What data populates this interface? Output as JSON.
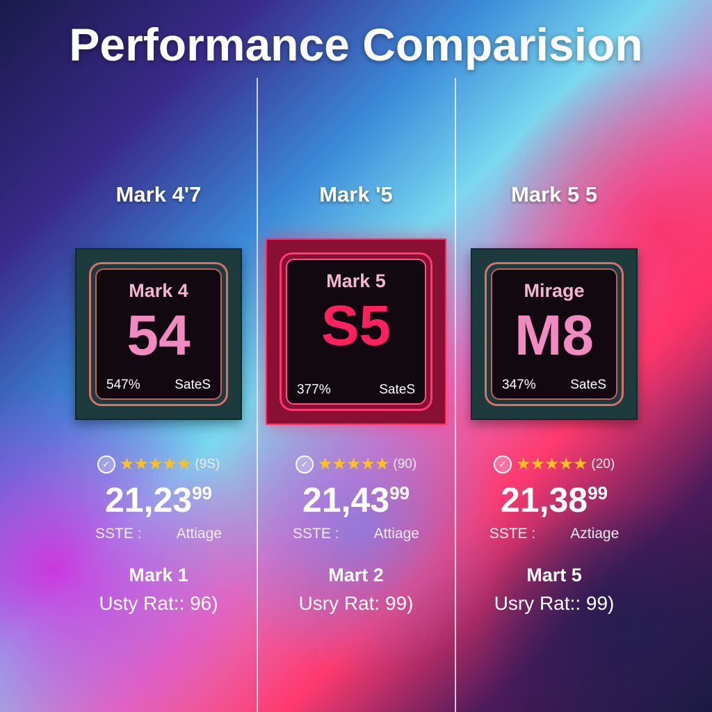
{
  "title": "Performance Comparision",
  "columns": [
    {
      "name": "Mark 4'7",
      "chip_name": "Mark 4",
      "chip_code": "54",
      "percent": "547%",
      "chip_label": "SateS",
      "highlighted": false,
      "stars": 5,
      "rating_count": "(9S)",
      "price_main": "21,23",
      "price_sup": "99",
      "label_left": "SSTE :",
      "label_right": "Attiage",
      "model": "Mark 1",
      "user_rating": "Usty Rat:: 96)"
    },
    {
      "name": "Mark '5",
      "chip_name": "Mark 5",
      "chip_code": "S5",
      "percent": "377%",
      "chip_label": "SateS",
      "highlighted": true,
      "stars": 5,
      "rating_count": "(90)",
      "price_main": "21,43",
      "price_sup": "99",
      "label_left": "SSTE :",
      "label_right": "Attiage",
      "model": "Mart 2",
      "user_rating": "Usry Rat: 99)"
    },
    {
      "name": "Mark 5 5",
      "chip_name": "Mirage",
      "chip_code": "M8",
      "percent": "347%",
      "chip_label": "SateS",
      "highlighted": false,
      "stars": 5,
      "rating_count": "(20)",
      "price_main": "21,38",
      "price_sup": "99",
      "label_left": "SSTE :",
      "label_right": "Aztiage",
      "model": "Mart 5",
      "user_rating": "Usry Rat:: 99)"
    }
  ],
  "icons": {
    "rating_badge": "tag-check-icon",
    "star": "star-icon"
  },
  "colors": {
    "star": "#ffc21a",
    "chip_text": "#f08ac0",
    "highlight": "#ff2060"
  }
}
